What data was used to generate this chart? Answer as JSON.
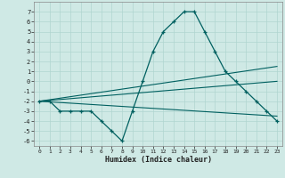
{
  "xlabel": "Humidex (Indice chaleur)",
  "bg_color": "#cfe9e5",
  "grid_color": "#b0d5d0",
  "line_color": "#006060",
  "xlim": [
    -0.5,
    23.5
  ],
  "ylim": [
    -6.5,
    8.0
  ],
  "xticks": [
    0,
    1,
    2,
    3,
    4,
    5,
    6,
    7,
    8,
    9,
    10,
    11,
    12,
    13,
    14,
    15,
    16,
    17,
    18,
    19,
    20,
    21,
    22,
    23
  ],
  "yticks": [
    -6,
    -5,
    -4,
    -3,
    -2,
    -1,
    0,
    1,
    2,
    3,
    4,
    5,
    6,
    7
  ],
  "curve1_x": [
    0,
    1,
    2,
    3,
    4,
    5,
    6,
    7,
    8,
    9,
    10,
    11,
    12,
    13,
    14,
    15,
    16,
    17,
    18,
    19,
    20,
    21,
    22,
    23
  ],
  "curve1_y": [
    -2,
    -2,
    -3,
    -3,
    -3,
    -3,
    -4,
    -5,
    -6,
    -3,
    0,
    3,
    5,
    6,
    7,
    7,
    5,
    3,
    1,
    0,
    -1,
    -2,
    -3,
    -4
  ],
  "line1_x": [
    0,
    23
  ],
  "line1_y": [
    -2,
    -3.5
  ],
  "line2_x": [
    0,
    23
  ],
  "line2_y": [
    -2,
    0
  ],
  "line3_x": [
    0,
    23
  ],
  "line3_y": [
    -2,
    1.5
  ]
}
